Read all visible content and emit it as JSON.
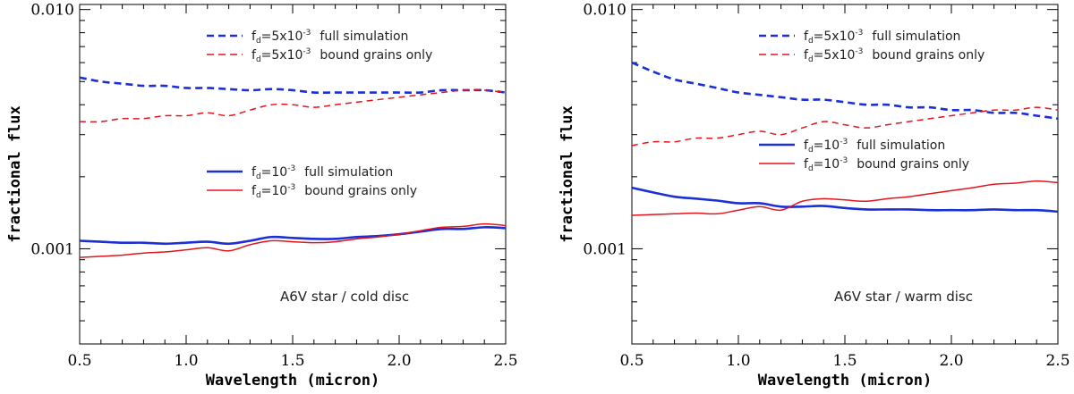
{
  "chart_data": [
    {
      "type": "line",
      "yscale": "log",
      "xlabel": "Wavelength (micron)",
      "ylabel": "fractional flux",
      "xlim": [
        0.5,
        2.5
      ],
      "ylim": [
        0.0004,
        0.0105
      ],
      "xticks": [
        0.5,
        1.0,
        1.5,
        2.0,
        2.5
      ],
      "xtick_labels": [
        "0.5",
        "1.0",
        "1.5",
        "2.0",
        "2.5"
      ],
      "yticks": [
        0.001,
        0.01
      ],
      "ytick_labels": [
        "0.001",
        "0.010"
      ],
      "annotation": "A6V star / cold disc",
      "legend_groups": [
        {
          "entries": [
            {
              "symbol": "f",
              "subscript": "d",
              "value": "=5x10",
              "exponent": "-3",
              "label": "full simulation",
              "color": "#1a2fd6",
              "dashed": true
            },
            {
              "symbol": "f",
              "subscript": "d",
              "value": "=5x10",
              "exponent": "-3",
              "label": "bound grains only",
              "color": "#e3141c",
              "dashed": true
            }
          ]
        },
        {
          "entries": [
            {
              "symbol": "f",
              "subscript": "d",
              "value": "=10",
              "exponent": "-3",
              "label": "full simulation",
              "color": "#1a2fd6",
              "dashed": false
            },
            {
              "symbol": "f",
              "subscript": "d",
              "value": "=10",
              "exponent": "-3",
              "label": "bound grains only",
              "color": "#e3141c",
              "dashed": false
            }
          ]
        }
      ],
      "series": [
        {
          "name": "fd=5x10^-3 full simulation",
          "color": "#1a2fd6",
          "dashed": true,
          "width": 2.6,
          "x": [
            0.5,
            0.6,
            0.7,
            0.8,
            0.9,
            1.0,
            1.1,
            1.2,
            1.3,
            1.4,
            1.5,
            1.6,
            1.7,
            1.8,
            1.9,
            2.0,
            2.1,
            2.2,
            2.3,
            2.4,
            2.5
          ],
          "y": [
            0.0052,
            0.005,
            0.0049,
            0.0048,
            0.0048,
            0.0047,
            0.0047,
            0.00465,
            0.0046,
            0.00465,
            0.0046,
            0.0045,
            0.0045,
            0.0045,
            0.0045,
            0.0045,
            0.0045,
            0.0046,
            0.0046,
            0.0046,
            0.0045
          ]
        },
        {
          "name": "fd=5x10^-3 bound grains only",
          "color": "#e3141c",
          "dashed": true,
          "width": 1.5,
          "x": [
            0.5,
            0.6,
            0.7,
            0.8,
            0.9,
            1.0,
            1.1,
            1.2,
            1.3,
            1.4,
            1.5,
            1.6,
            1.7,
            1.8,
            1.9,
            2.0,
            2.1,
            2.2,
            2.3,
            2.4,
            2.5
          ],
          "y": [
            0.0034,
            0.0034,
            0.0035,
            0.0035,
            0.0036,
            0.0036,
            0.0037,
            0.0036,
            0.0038,
            0.004,
            0.004,
            0.0039,
            0.004,
            0.0041,
            0.0042,
            0.0043,
            0.0044,
            0.0045,
            0.0046,
            0.0046,
            0.0045
          ]
        },
        {
          "name": "fd=10^-3 full simulation",
          "color": "#1a2fd6",
          "dashed": false,
          "width": 2.6,
          "x": [
            0.5,
            0.6,
            0.7,
            0.8,
            0.9,
            1.0,
            1.1,
            1.2,
            1.3,
            1.4,
            1.5,
            1.6,
            1.7,
            1.8,
            1.9,
            2.0,
            2.1,
            2.2,
            2.3,
            2.4,
            2.5
          ],
          "y": [
            0.00108,
            0.00107,
            0.00106,
            0.00106,
            0.00105,
            0.00106,
            0.00107,
            0.00105,
            0.00108,
            0.00112,
            0.00111,
            0.0011,
            0.0011,
            0.00112,
            0.00113,
            0.00115,
            0.00118,
            0.00121,
            0.00121,
            0.00123,
            0.00122
          ]
        },
        {
          "name": "fd=10^-3 bound grains only",
          "color": "#e3141c",
          "dashed": false,
          "width": 1.5,
          "x": [
            0.5,
            0.6,
            0.7,
            0.8,
            0.9,
            1.0,
            1.1,
            1.2,
            1.3,
            1.4,
            1.5,
            1.6,
            1.7,
            1.8,
            1.9,
            2.0,
            2.1,
            2.2,
            2.3,
            2.4,
            2.5
          ],
          "y": [
            0.00092,
            0.00093,
            0.00094,
            0.00096,
            0.00097,
            0.00099,
            0.00101,
            0.00098,
            0.00104,
            0.00108,
            0.00107,
            0.00106,
            0.00107,
            0.0011,
            0.00112,
            0.00115,
            0.00119,
            0.00123,
            0.00124,
            0.00127,
            0.00125
          ]
        }
      ]
    },
    {
      "type": "line",
      "yscale": "log",
      "xlabel": "Wavelength (micron)",
      "ylabel": "fractional flux",
      "xlim": [
        0.5,
        2.5
      ],
      "ylim": [
        0.0004,
        0.0105
      ],
      "xticks": [
        0.5,
        1.0,
        1.5,
        2.0,
        2.5
      ],
      "xtick_labels": [
        "0.5",
        "1.0",
        "1.5",
        "2.0",
        "2.5"
      ],
      "yticks": [
        0.001,
        0.01
      ],
      "ytick_labels": [
        "0.001",
        "0.010"
      ],
      "annotation": "A6V star / warm disc",
      "legend_groups": [
        {
          "entries": [
            {
              "symbol": "f",
              "subscript": "d",
              "value": "=5x10",
              "exponent": "-3",
              "label": "full simulation",
              "color": "#1a2fd6",
              "dashed": true
            },
            {
              "symbol": "f",
              "subscript": "d",
              "value": "=5x10",
              "exponent": "-3",
              "label": "bound grains only",
              "color": "#e3141c",
              "dashed": true
            }
          ]
        },
        {
          "entries": [
            {
              "symbol": "f",
              "subscript": "d",
              "value": "=10",
              "exponent": "-3",
              "label": "full simulation",
              "color": "#1a2fd6",
              "dashed": false
            },
            {
              "symbol": "f",
              "subscript": "d",
              "value": "=10",
              "exponent": "-3",
              "label": "bound grains only",
              "color": "#e3141c",
              "dashed": false
            }
          ]
        }
      ],
      "series": [
        {
          "name": "fd=5x10^-3 full simulation",
          "color": "#1a2fd6",
          "dashed": true,
          "width": 2.6,
          "x": [
            0.5,
            0.6,
            0.7,
            0.8,
            0.9,
            1.0,
            1.1,
            1.2,
            1.3,
            1.4,
            1.5,
            1.6,
            1.7,
            1.8,
            1.9,
            2.0,
            2.1,
            2.2,
            2.3,
            2.4,
            2.5
          ],
          "y": [
            0.006,
            0.0055,
            0.0051,
            0.0049,
            0.0047,
            0.0045,
            0.0044,
            0.0043,
            0.0042,
            0.0042,
            0.0041,
            0.004,
            0.004,
            0.0039,
            0.0039,
            0.0038,
            0.0038,
            0.0037,
            0.0037,
            0.0036,
            0.0035
          ]
        },
        {
          "name": "fd=5x10^-3 bound grains only",
          "color": "#e3141c",
          "dashed": true,
          "width": 1.5,
          "x": [
            0.5,
            0.6,
            0.7,
            0.8,
            0.9,
            1.0,
            1.1,
            1.2,
            1.3,
            1.4,
            1.5,
            1.6,
            1.7,
            1.8,
            1.9,
            2.0,
            2.1,
            2.2,
            2.3,
            2.4,
            2.5
          ],
          "y": [
            0.0027,
            0.0028,
            0.0028,
            0.0029,
            0.0029,
            0.003,
            0.0031,
            0.003,
            0.0032,
            0.0034,
            0.0033,
            0.0032,
            0.0033,
            0.0034,
            0.0035,
            0.0036,
            0.0037,
            0.0038,
            0.0038,
            0.0039,
            0.0038
          ]
        },
        {
          "name": "fd=10^-3 full simulation",
          "color": "#1a2fd6",
          "dashed": false,
          "width": 2.6,
          "x": [
            0.5,
            0.6,
            0.7,
            0.8,
            0.9,
            1.0,
            1.1,
            1.2,
            1.3,
            1.4,
            1.5,
            1.6,
            1.7,
            1.8,
            1.9,
            2.0,
            2.1,
            2.2,
            2.3,
            2.4,
            2.5
          ],
          "y": [
            0.0018,
            0.00172,
            0.00165,
            0.00162,
            0.00159,
            0.00155,
            0.00155,
            0.0015,
            0.0015,
            0.00151,
            0.00148,
            0.00146,
            0.00146,
            0.00146,
            0.00145,
            0.00145,
            0.00145,
            0.00146,
            0.00145,
            0.00145,
            0.00143
          ]
        },
        {
          "name": "fd=10^-3 bound grains only",
          "color": "#e3141c",
          "dashed": false,
          "width": 1.5,
          "x": [
            0.5,
            0.6,
            0.7,
            0.8,
            0.9,
            1.0,
            1.1,
            1.2,
            1.3,
            1.4,
            1.5,
            1.6,
            1.7,
            1.8,
            1.9,
            2.0,
            2.1,
            2.2,
            2.3,
            2.4,
            2.5
          ],
          "y": [
            0.00138,
            0.00139,
            0.0014,
            0.00141,
            0.0014,
            0.00145,
            0.0015,
            0.00145,
            0.00158,
            0.00162,
            0.0016,
            0.00158,
            0.00162,
            0.00165,
            0.0017,
            0.00175,
            0.0018,
            0.00186,
            0.00188,
            0.00192,
            0.00189
          ]
        }
      ]
    }
  ]
}
